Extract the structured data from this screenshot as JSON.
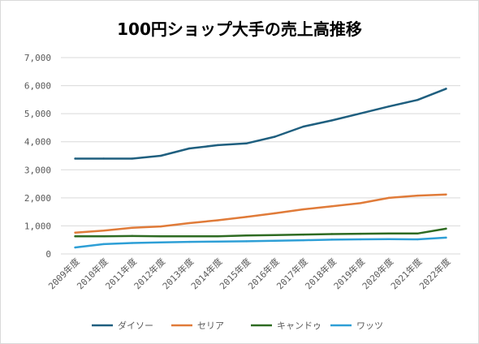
{
  "chart_data": {
    "type": "line",
    "title": "100円ショップ大手の売上高推移",
    "xlabel": "",
    "ylabel": "",
    "ylim": [
      0,
      7000
    ],
    "yticks": [
      0,
      1000,
      2000,
      3000,
      4000,
      5000,
      6000,
      7000
    ],
    "ytick_labels": [
      "0",
      "1,000",
      "2,000",
      "3,000",
      "4,000",
      "5,000",
      "6,000",
      "7,000"
    ],
    "categories": [
      "2009年度",
      "2010年度",
      "2011年度",
      "2012年度",
      "2013年度",
      "2014年度",
      "2015年度",
      "2016年度",
      "2017年度",
      "2018年度",
      "2019年度",
      "2020年度",
      "2021年度",
      "2022年度"
    ],
    "grid": true,
    "legend_position": "bottom",
    "series": [
      {
        "name": "ダイソー",
        "color": "#1f5f7f",
        "values": [
          3400,
          3400,
          3400,
          3500,
          3760,
          3880,
          3940,
          4180,
          4540,
          4760,
          5010,
          5260,
          5490,
          5890
        ]
      },
      {
        "name": "セリア",
        "color": "#e07b39",
        "values": [
          760,
          830,
          930,
          980,
          1100,
          1200,
          1320,
          1450,
          1590,
          1700,
          1810,
          2000,
          2080,
          2120
        ]
      },
      {
        "name": "キャンドゥ",
        "color": "#2e6b22",
        "values": [
          630,
          630,
          640,
          630,
          630,
          630,
          660,
          670,
          690,
          710,
          720,
          730,
          730,
          900
        ]
      },
      {
        "name": "ワッツ",
        "color": "#2e9fd6",
        "values": [
          230,
          350,
          390,
          410,
          430,
          440,
          450,
          470,
          490,
          510,
          520,
          530,
          520,
          580
        ]
      }
    ]
  }
}
